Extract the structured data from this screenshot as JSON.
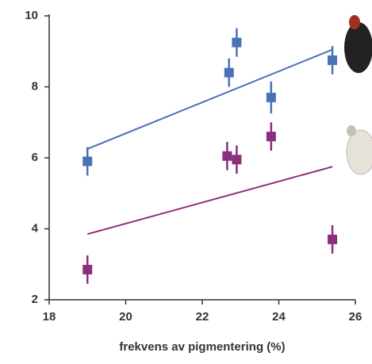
{
  "chart_data": {
    "type": "scatter",
    "xlabel": "frekvens av pigmentering (%)",
    "xlim": [
      18,
      26
    ],
    "xticks": [
      18,
      20,
      22,
      24,
      26
    ],
    "ylim": [
      2,
      10
    ],
    "yticks": [
      2,
      4,
      6,
      8,
      10
    ],
    "grid": false,
    "series": [
      {
        "color": "#4a72b8",
        "x": [
          19,
          22.7,
          22.9,
          23.8,
          25.4
        ],
        "values": [
          5.9,
          8.4,
          9.25,
          7.7,
          8.75
        ],
        "errors": [
          0.4,
          0.4,
          0.4,
          0.45,
          0.4
        ]
      },
      {
        "color": "#8a2e7e",
        "x": [
          19,
          22.65,
          22.9,
          23.8,
          25.4
        ],
        "values": [
          2.85,
          6.05,
          5.95,
          6.6,
          3.7
        ],
        "errors": [
          0.4,
          0.4,
          0.4,
          0.4,
          0.4
        ]
      }
    ],
    "trendlines": [
      {
        "color": "#4a72b8",
        "x": [
          19,
          25.4
        ],
        "values": [
          6.25,
          9.05
        ]
      },
      {
        "color": "#8a2e7e",
        "x": [
          19,
          25.4
        ],
        "values": [
          3.85,
          5.75
        ]
      }
    ]
  }
}
